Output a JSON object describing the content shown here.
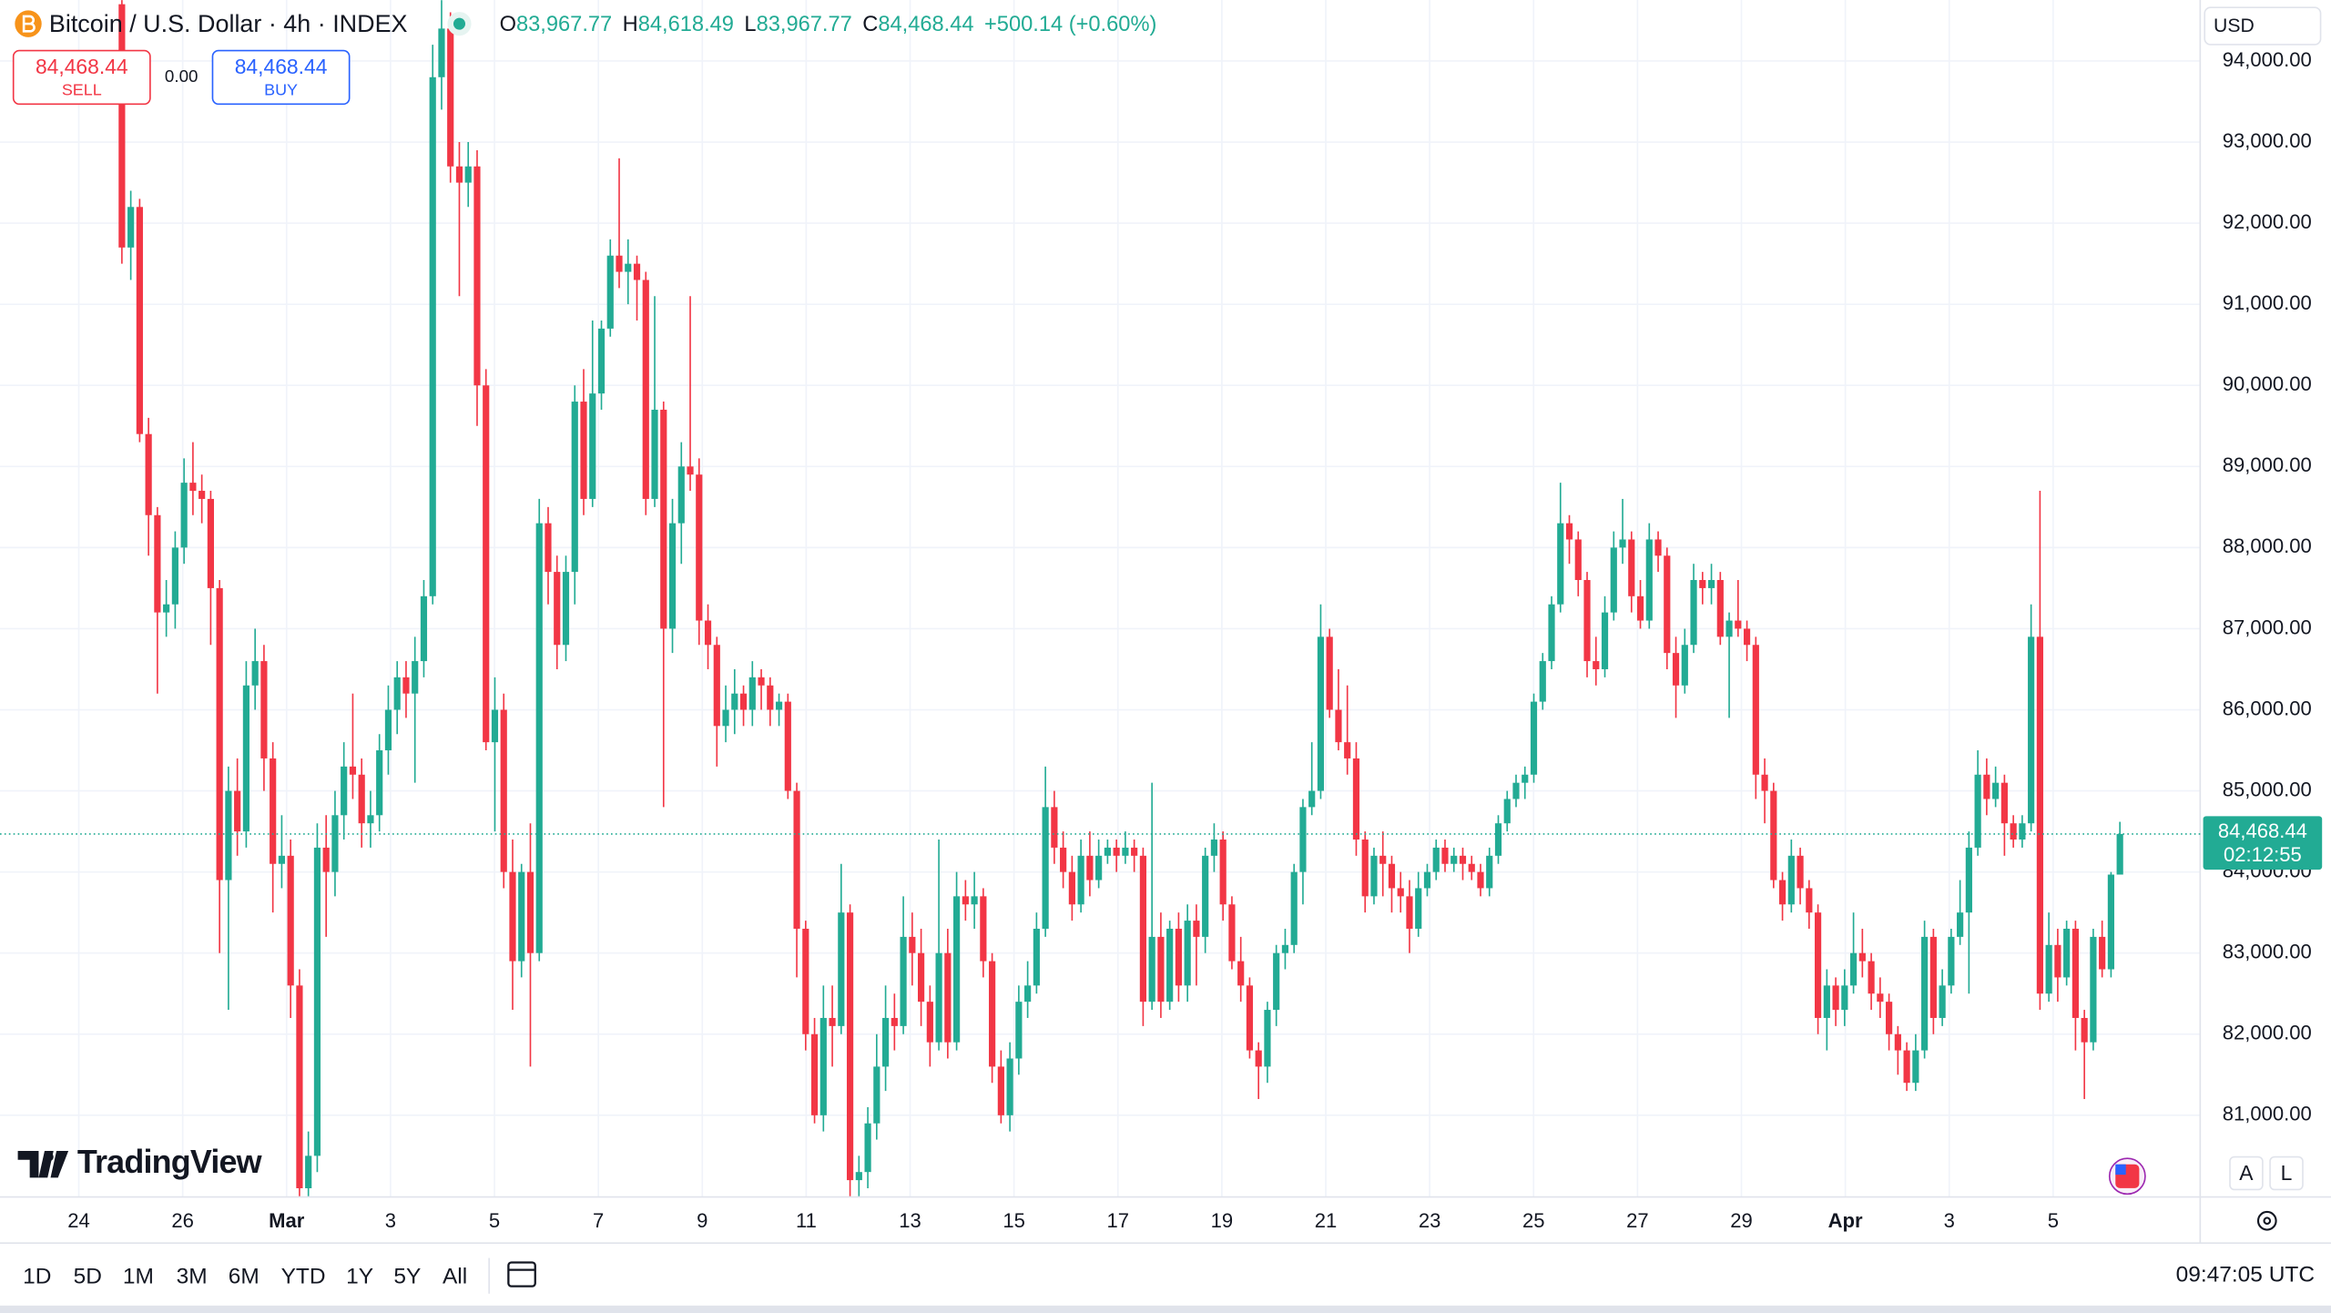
{
  "header": {
    "title": "Bitcoin / U.S. Dollar · 4h · INDEX",
    "ohlc": [
      {
        "label": "O",
        "value": "83,967.77"
      },
      {
        "label": "H",
        "value": "84,618.49"
      },
      {
        "label": "L",
        "value": "83,967.77"
      },
      {
        "label": "C",
        "value": "84,468.44"
      }
    ],
    "change": "+500.14 (+0.60%)"
  },
  "trade": {
    "sell_price": "84,468.44",
    "sell": "SELL",
    "spread": "0.00",
    "buy_price": "84,468.44",
    "buy": "BUY"
  },
  "currency": "USD",
  "brand": "TradingView",
  "scale_buttons": [
    "A",
    "L"
  ],
  "ranges": [
    "1D",
    "5D",
    "1M",
    "3M",
    "6M",
    "YTD",
    "1Y",
    "5Y",
    "All"
  ],
  "clock": "09:47:05 UTC",
  "chart_data": {
    "type": "candlestick",
    "up_color": "#22ab94",
    "down_color": "#f23645",
    "grid": true,
    "ylim": [
      79992,
      94752
    ],
    "yticks": [
      {
        "value": 81000,
        "label": "81,000.00"
      },
      {
        "value": 82000,
        "label": "82,000.00"
      },
      {
        "value": 83000,
        "label": "83,000.00"
      },
      {
        "value": 84000,
        "label": "84,000.00"
      },
      {
        "value": 85000,
        "label": "85,000.00"
      },
      {
        "value": 86000,
        "label": "86,000.00"
      },
      {
        "value": 87000,
        "label": "87,000.00"
      },
      {
        "value": 88000,
        "label": "88,000.00"
      },
      {
        "value": 89000,
        "label": "89,000.00"
      },
      {
        "value": 90000,
        "label": "90,000.00"
      },
      {
        "value": 91000,
        "label": "91,000.00"
      },
      {
        "value": 92000,
        "label": "92,000.00"
      },
      {
        "value": 93000,
        "label": "93,000.00"
      },
      {
        "value": 94000,
        "label": "94,000.00"
      }
    ],
    "xticks": [
      "24",
      "26",
      "Mar",
      "3",
      "5",
      "7",
      "9",
      "11",
      "13",
      "15",
      "17",
      "19",
      "21",
      "23",
      "25",
      "27",
      "29",
      "Apr",
      "3",
      "5"
    ],
    "last_price": {
      "value": 84468.44,
      "label": "84,468.44"
    },
    "countdown": "02:12:55",
    "candles": [
      [
        94700,
        94750,
        91500,
        91700
      ],
      [
        91700,
        92400,
        91300,
        92200
      ],
      [
        92200,
        92300,
        89300,
        89400
      ],
      [
        89400,
        89600,
        87900,
        88400
      ],
      [
        88400,
        88500,
        86200,
        87200
      ],
      [
        87200,
        87600,
        86900,
        87300
      ],
      [
        87300,
        88200,
        87000,
        88000
      ],
      [
        88000,
        89100,
        87800,
        88800
      ],
      [
        88800,
        89300,
        88400,
        88700
      ],
      [
        88700,
        88900,
        88300,
        88600
      ],
      [
        88600,
        88700,
        86800,
        87500
      ],
      [
        87500,
        87600,
        83000,
        83900
      ],
      [
        83900,
        85300,
        82300,
        85000
      ],
      [
        85000,
        85400,
        84200,
        84500
      ],
      [
        84500,
        86600,
        84300,
        86300
      ],
      [
        86300,
        87000,
        86000,
        86600
      ],
      [
        86600,
        86800,
        85000,
        85400
      ],
      [
        85400,
        85600,
        83500,
        84100
      ],
      [
        84100,
        84700,
        83800,
        84200
      ],
      [
        84200,
        84400,
        82200,
        82600
      ],
      [
        82600,
        82800,
        80000,
        80100
      ],
      [
        80100,
        80800,
        80000,
        80500
      ],
      [
        80500,
        84600,
        80300,
        84300
      ],
      [
        84300,
        84700,
        83200,
        84000
      ],
      [
        84000,
        85000,
        83700,
        84700
      ],
      [
        84700,
        85600,
        84400,
        85300
      ],
      [
        85300,
        86200,
        84900,
        85200
      ],
      [
        85200,
        85400,
        84300,
        84600
      ],
      [
        84600,
        85000,
        84300,
        84700
      ],
      [
        84700,
        85700,
        84500,
        85500
      ],
      [
        85500,
        86300,
        85200,
        86000
      ],
      [
        86000,
        86600,
        85700,
        86400
      ],
      [
        86400,
        86600,
        85900,
        86200
      ],
      [
        86200,
        86900,
        85100,
        86600
      ],
      [
        86600,
        87600,
        86400,
        87400
      ],
      [
        87400,
        94200,
        87300,
        93800
      ],
      [
        93800,
        94750,
        93400,
        94400
      ],
      [
        94400,
        94600,
        92500,
        92700
      ],
      [
        92700,
        93000,
        91100,
        92500
      ],
      [
        92500,
        93000,
        92200,
        92700
      ],
      [
        92700,
        92900,
        89500,
        90000
      ],
      [
        90000,
        90200,
        85500,
        85600
      ],
      [
        85600,
        86400,
        84500,
        86000
      ],
      [
        86000,
        86200,
        83800,
        84000
      ],
      [
        84000,
        84400,
        82300,
        82900
      ],
      [
        82900,
        84100,
        82700,
        84000
      ],
      [
        84000,
        84600,
        81600,
        83000
      ],
      [
        83000,
        88600,
        82900,
        88300
      ],
      [
        88300,
        88500,
        87300,
        87700
      ],
      [
        87700,
        87900,
        86500,
        86800
      ],
      [
        86800,
        87900,
        86600,
        87700
      ],
      [
        87700,
        90000,
        87300,
        89800
      ],
      [
        89800,
        90200,
        88400,
        88600
      ],
      [
        88600,
        90800,
        88500,
        89900
      ],
      [
        89900,
        90800,
        89700,
        90700
      ],
      [
        90700,
        91800,
        90600,
        91600
      ],
      [
        91600,
        92800,
        91200,
        91400
      ],
      [
        91400,
        91800,
        91000,
        91500
      ],
      [
        91500,
        91600,
        90800,
        91300
      ],
      [
        91300,
        91400,
        88400,
        88600
      ],
      [
        88600,
        91100,
        88500,
        89700
      ],
      [
        89700,
        89800,
        84800,
        87000
      ],
      [
        87000,
        88600,
        86700,
        88300
      ],
      [
        88300,
        89300,
        87800,
        89000
      ],
      [
        89000,
        91100,
        88700,
        88900
      ],
      [
        88900,
        89100,
        86800,
        87100
      ],
      [
        87100,
        87300,
        86500,
        86800
      ],
      [
        86800,
        86900,
        85300,
        85800
      ],
      [
        85800,
        86300,
        85600,
        86000
      ],
      [
        86000,
        86500,
        85700,
        86200
      ],
      [
        86200,
        86300,
        85800,
        86000
      ],
      [
        86000,
        86600,
        85800,
        86400
      ],
      [
        86400,
        86500,
        86000,
        86300
      ],
      [
        86300,
        86400,
        85800,
        86000
      ],
      [
        86000,
        86200,
        85800,
        86100
      ],
      [
        86100,
        86200,
        84900,
        85000
      ],
      [
        85000,
        85100,
        82700,
        83300
      ],
      [
        83300,
        83400,
        81800,
        82000
      ],
      [
        82000,
        82200,
        80900,
        81000
      ],
      [
        81000,
        82600,
        80800,
        82200
      ],
      [
        82200,
        82600,
        81600,
        82100
      ],
      [
        82100,
        84100,
        82000,
        83500
      ],
      [
        83500,
        83600,
        80000,
        80200
      ],
      [
        80200,
        80500,
        80000,
        80300
      ],
      [
        80300,
        81100,
        80100,
        80900
      ],
      [
        80900,
        82000,
        80700,
        81600
      ],
      [
        81600,
        82600,
        81300,
        82200
      ],
      [
        82200,
        82500,
        81800,
        82100
      ],
      [
        82100,
        83700,
        82000,
        83200
      ],
      [
        83200,
        83500,
        82600,
        83000
      ],
      [
        83000,
        83300,
        82100,
        82400
      ],
      [
        82400,
        82600,
        81600,
        81900
      ],
      [
        81900,
        84400,
        81800,
        83000
      ],
      [
        83000,
        83300,
        81700,
        81900
      ],
      [
        81900,
        84000,
        81800,
        83700
      ],
      [
        83700,
        83900,
        83400,
        83600
      ],
      [
        83600,
        84000,
        83300,
        83700
      ],
      [
        83700,
        83800,
        82700,
        82900
      ],
      [
        82900,
        83000,
        81400,
        81600
      ],
      [
        81600,
        81800,
        80900,
        81000
      ],
      [
        81000,
        81900,
        80800,
        81700
      ],
      [
        81700,
        82600,
        81500,
        82400
      ],
      [
        82400,
        82900,
        82200,
        82600
      ],
      [
        82600,
        83500,
        82500,
        83300
      ],
      [
        83300,
        85300,
        83200,
        84800
      ],
      [
        84800,
        85000,
        84100,
        84300
      ],
      [
        84300,
        84500,
        83800,
        84000
      ],
      [
        84000,
        84200,
        83400,
        83600
      ],
      [
        83600,
        84400,
        83500,
        84200
      ],
      [
        84200,
        84500,
        83700,
        83900
      ],
      [
        83900,
        84400,
        83800,
        84200
      ],
      [
        84200,
        84400,
        84100,
        84300
      ],
      [
        84300,
        84400,
        84000,
        84200
      ],
      [
        84200,
        84500,
        84100,
        84300
      ],
      [
        84300,
        84400,
        84000,
        84200
      ],
      [
        84200,
        84300,
        82100,
        82400
      ],
      [
        82400,
        85100,
        82300,
        83200
      ],
      [
        83200,
        83500,
        82200,
        82400
      ],
      [
        82400,
        83400,
        82300,
        83300
      ],
      [
        83300,
        83500,
        82400,
        82600
      ],
      [
        82600,
        83600,
        82400,
        83400
      ],
      [
        83400,
        83600,
        82600,
        83200
      ],
      [
        83200,
        84300,
        83000,
        84200
      ],
      [
        84200,
        84600,
        84000,
        84400
      ],
      [
        84400,
        84500,
        83400,
        83600
      ],
      [
        83600,
        83700,
        82800,
        82900
      ],
      [
        82900,
        83200,
        82400,
        82600
      ],
      [
        82600,
        82700,
        81700,
        81800
      ],
      [
        81800,
        81900,
        81200,
        81600
      ],
      [
        81600,
        82400,
        81400,
        82300
      ],
      [
        82300,
        83100,
        82100,
        83000
      ],
      [
        83000,
        83300,
        82800,
        83100
      ],
      [
        83100,
        84100,
        83000,
        84000
      ],
      [
        84000,
        84900,
        83600,
        84800
      ],
      [
        84800,
        85600,
        84700,
        85000
      ],
      [
        85000,
        87300,
        84900,
        86900
      ],
      [
        86900,
        87000,
        85900,
        86000
      ],
      [
        86000,
        86500,
        85500,
        85600
      ],
      [
        85600,
        86300,
        85200,
        85400
      ],
      [
        85400,
        85600,
        84200,
        84400
      ],
      [
        84400,
        84500,
        83500,
        83700
      ],
      [
        83700,
        84300,
        83600,
        84200
      ],
      [
        84200,
        84500,
        83700,
        84100
      ],
      [
        84100,
        84200,
        83500,
        83800
      ],
      [
        83800,
        84000,
        83500,
        83700
      ],
      [
        83700,
        83900,
        83000,
        83300
      ],
      [
        83300,
        84000,
        83200,
        83800
      ],
      [
        83800,
        84100,
        83700,
        84000
      ],
      [
        84000,
        84400,
        83900,
        84300
      ],
      [
        84300,
        84400,
        84000,
        84100
      ],
      [
        84100,
        84300,
        84000,
        84200
      ],
      [
        84200,
        84300,
        83900,
        84100
      ],
      [
        84100,
        84200,
        83900,
        84000
      ],
      [
        84000,
        84100,
        83700,
        83800
      ],
      [
        83800,
        84300,
        83700,
        84200
      ],
      [
        84200,
        84700,
        84100,
        84600
      ],
      [
        84600,
        85000,
        84500,
        84900
      ],
      [
        84900,
        85200,
        84800,
        85100
      ],
      [
        85100,
        85300,
        84900,
        85200
      ],
      [
        85200,
        86200,
        85100,
        86100
      ],
      [
        86100,
        86700,
        86000,
        86600
      ],
      [
        86600,
        87400,
        86500,
        87300
      ],
      [
        87300,
        88800,
        87200,
        88300
      ],
      [
        88300,
        88400,
        87800,
        88100
      ],
      [
        88100,
        88200,
        87400,
        87600
      ],
      [
        87600,
        87700,
        86400,
        86600
      ],
      [
        86600,
        86900,
        86300,
        86500
      ],
      [
        86500,
        87400,
        86400,
        87200
      ],
      [
        87200,
        88200,
        87100,
        88000
      ],
      [
        88000,
        88600,
        87800,
        88100
      ],
      [
        88100,
        88200,
        87200,
        87400
      ],
      [
        87400,
        87600,
        87000,
        87100
      ],
      [
        87100,
        88300,
        87000,
        88100
      ],
      [
        88100,
        88200,
        87700,
        87900
      ],
      [
        87900,
        88000,
        86500,
        86700
      ],
      [
        86700,
        86900,
        85900,
        86300
      ],
      [
        86300,
        87000,
        86200,
        86800
      ],
      [
        86800,
        87800,
        86700,
        87600
      ],
      [
        87600,
        87700,
        87300,
        87500
      ],
      [
        87500,
        87800,
        87300,
        87600
      ],
      [
        87600,
        87700,
        86800,
        86900
      ],
      [
        86900,
        87200,
        85900,
        87100
      ],
      [
        87100,
        87600,
        86900,
        87000
      ],
      [
        87000,
        87100,
        86600,
        86800
      ],
      [
        86800,
        86900,
        84900,
        85200
      ],
      [
        85200,
        85400,
        84600,
        85000
      ],
      [
        85000,
        85100,
        83800,
        83900
      ],
      [
        83900,
        84000,
        83400,
        83600
      ],
      [
        83600,
        84400,
        83500,
        84200
      ],
      [
        84200,
        84300,
        83600,
        83800
      ],
      [
        83800,
        83900,
        83300,
        83500
      ],
      [
        83500,
        83600,
        82000,
        82200
      ],
      [
        82200,
        82800,
        81800,
        82600
      ],
      [
        82600,
        82700,
        82100,
        82300
      ],
      [
        82300,
        82800,
        82100,
        82600
      ],
      [
        82600,
        83500,
        82500,
        83000
      ],
      [
        83000,
        83300,
        82700,
        82900
      ],
      [
        82900,
        83000,
        82300,
        82500
      ],
      [
        82500,
        82700,
        82200,
        82400
      ],
      [
        82400,
        82500,
        81800,
        82000
      ],
      [
        82000,
        82100,
        81500,
        81800
      ],
      [
        81800,
        81900,
        81300,
        81400
      ],
      [
        81400,
        82000,
        81300,
        81800
      ],
      [
        81800,
        83400,
        81700,
        83200
      ],
      [
        83200,
        83300,
        82000,
        82200
      ],
      [
        82200,
        82800,
        82100,
        82600
      ],
      [
        82600,
        83300,
        82500,
        83200
      ],
      [
        83200,
        83900,
        83100,
        83500
      ],
      [
        83500,
        84500,
        82500,
        84300
      ],
      [
        84300,
        85500,
        84200,
        85200
      ],
      [
        85200,
        85400,
        84700,
        84900
      ],
      [
        84900,
        85300,
        84800,
        85100
      ],
      [
        85100,
        85200,
        84200,
        84600
      ],
      [
        84600,
        84700,
        84300,
        84400
      ],
      [
        84400,
        84700,
        84300,
        84600
      ],
      [
        84600,
        87300,
        84500,
        86900
      ],
      [
        86900,
        88700,
        82300,
        82500
      ],
      [
        82500,
        83500,
        82400,
        83100
      ],
      [
        83100,
        83300,
        82400,
        82700
      ],
      [
        82700,
        83400,
        82600,
        83300
      ],
      [
        83300,
        83400,
        81800,
        82200
      ],
      [
        82200,
        82300,
        81200,
        81900
      ],
      [
        81900,
        83300,
        81800,
        83200
      ],
      [
        83200,
        83400,
        82700,
        82800
      ],
      [
        82800,
        84000,
        82700,
        83967.77
      ],
      [
        83967.77,
        84618.49,
        83967.77,
        84468.44
      ]
    ]
  }
}
